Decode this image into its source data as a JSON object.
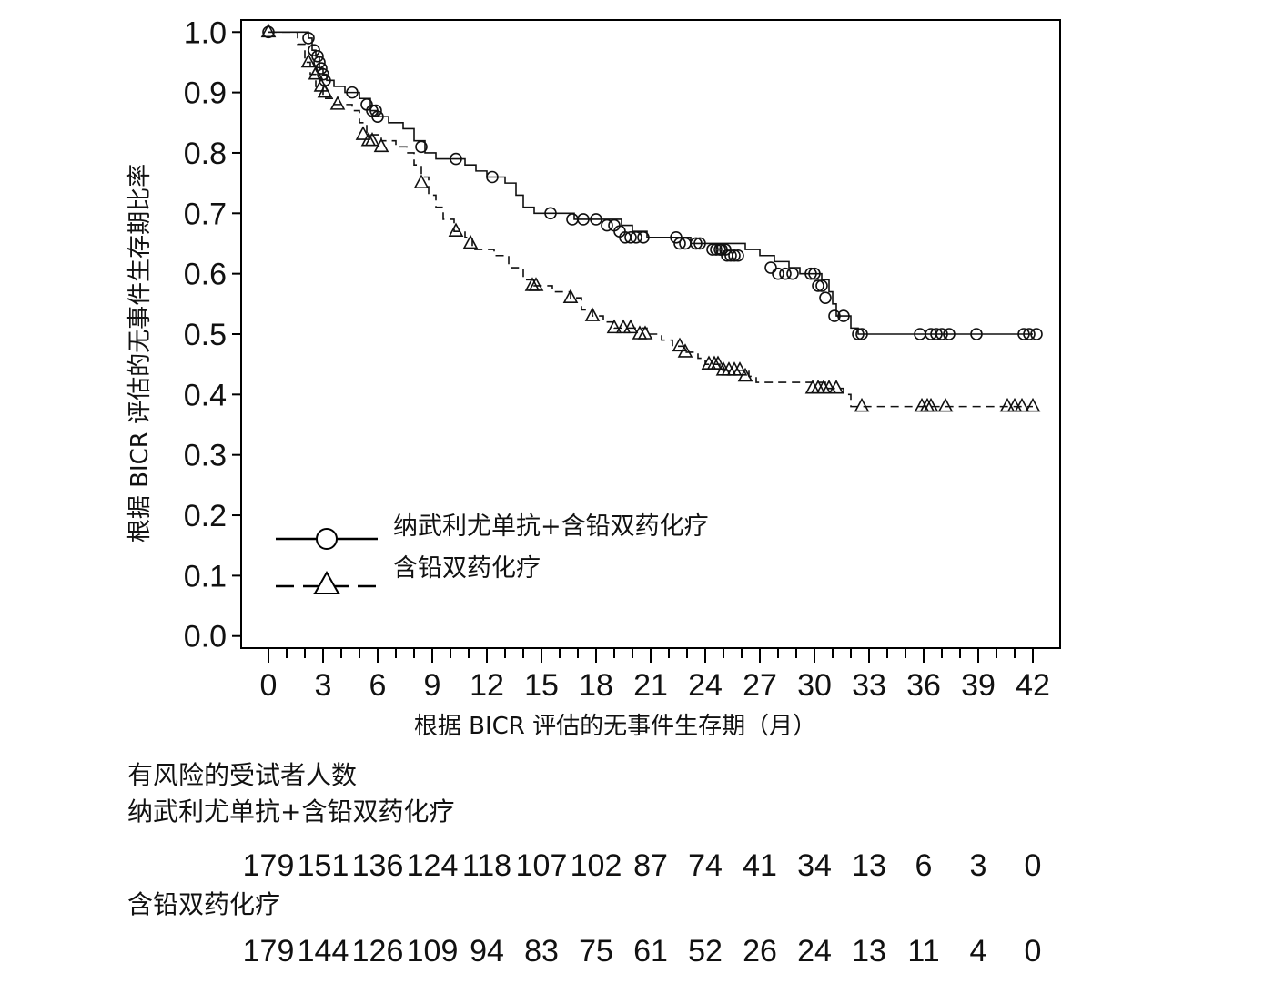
{
  "chart_data": {
    "type": "line",
    "xlabel": "根据 BICR 评估的无事件生存期（月）",
    "ylabel": "根据 BICR 评估的无事件生存期比率",
    "xlim": [
      -1.5,
      43.5
    ],
    "ylim": [
      -0.02,
      1.02
    ],
    "xticks": [
      0,
      3,
      6,
      9,
      12,
      15,
      18,
      21,
      24,
      27,
      30,
      33,
      36,
      39,
      42
    ],
    "yticks": [
      0.0,
      0.1,
      0.2,
      0.3,
      0.4,
      0.5,
      0.6,
      0.7,
      0.8,
      0.9,
      1.0
    ],
    "x_minor_step": 1,
    "grid": false,
    "legend_position": "bottom-left",
    "series": [
      {
        "name": "纳武利尤单抗+含铅双药化疗",
        "line_style": "solid",
        "marker": "circle",
        "steps": [
          [
            0,
            1.0
          ],
          [
            2.2,
            0.99
          ],
          [
            2.4,
            0.97
          ],
          [
            2.6,
            0.96
          ],
          [
            2.8,
            0.94
          ],
          [
            3.0,
            0.93
          ],
          [
            3.2,
            0.92
          ],
          [
            3.6,
            0.91
          ],
          [
            4.2,
            0.9
          ],
          [
            5.0,
            0.89
          ],
          [
            5.6,
            0.87
          ],
          [
            6.0,
            0.86
          ],
          [
            6.6,
            0.85
          ],
          [
            7.4,
            0.84
          ],
          [
            8.0,
            0.82
          ],
          [
            8.6,
            0.8
          ],
          [
            9.2,
            0.79
          ],
          [
            10.8,
            0.78
          ],
          [
            11.4,
            0.77
          ],
          [
            12.0,
            0.76
          ],
          [
            13.0,
            0.75
          ],
          [
            13.6,
            0.73
          ],
          [
            14.0,
            0.71
          ],
          [
            14.6,
            0.7
          ],
          [
            16.8,
            0.69
          ],
          [
            17.6,
            0.69
          ],
          [
            19.4,
            0.68
          ],
          [
            20.0,
            0.67
          ],
          [
            20.8,
            0.66
          ],
          [
            22.8,
            0.66
          ],
          [
            23.2,
            0.65
          ],
          [
            26.2,
            0.64
          ],
          [
            27.0,
            0.63
          ],
          [
            27.8,
            0.62
          ],
          [
            28.6,
            0.61
          ],
          [
            29.2,
            0.6
          ],
          [
            30.4,
            0.59
          ],
          [
            30.8,
            0.57
          ],
          [
            31.0,
            0.55
          ],
          [
            31.2,
            0.53
          ],
          [
            32.0,
            0.51
          ],
          [
            32.4,
            0.5
          ]
        ],
        "end_x": 42.0,
        "censored": [
          [
            0,
            1.0
          ],
          [
            2.2,
            0.99
          ],
          [
            2.5,
            0.97
          ],
          [
            2.7,
            0.96
          ],
          [
            2.8,
            0.95
          ],
          [
            2.9,
            0.94
          ],
          [
            3.0,
            0.93
          ],
          [
            3.1,
            0.92
          ],
          [
            4.6,
            0.9
          ],
          [
            5.4,
            0.88
          ],
          [
            5.7,
            0.87
          ],
          [
            5.9,
            0.87
          ],
          [
            6.0,
            0.86
          ],
          [
            8.4,
            0.81
          ],
          [
            10.3,
            0.79
          ],
          [
            12.3,
            0.76
          ],
          [
            15.5,
            0.7
          ],
          [
            16.7,
            0.69
          ],
          [
            17.3,
            0.69
          ],
          [
            18.0,
            0.69
          ],
          [
            18.6,
            0.68
          ],
          [
            19.0,
            0.68
          ],
          [
            19.3,
            0.67
          ],
          [
            19.6,
            0.66
          ],
          [
            19.9,
            0.66
          ],
          [
            20.2,
            0.66
          ],
          [
            20.6,
            0.66
          ],
          [
            22.4,
            0.66
          ],
          [
            22.6,
            0.65
          ],
          [
            22.9,
            0.65
          ],
          [
            23.5,
            0.65
          ],
          [
            23.7,
            0.65
          ],
          [
            24.4,
            0.64
          ],
          [
            24.6,
            0.64
          ],
          [
            24.8,
            0.64
          ],
          [
            24.9,
            0.64
          ],
          [
            25.1,
            0.64
          ],
          [
            25.2,
            0.63
          ],
          [
            25.4,
            0.63
          ],
          [
            25.6,
            0.63
          ],
          [
            25.8,
            0.63
          ],
          [
            27.6,
            0.61
          ],
          [
            28.0,
            0.6
          ],
          [
            28.4,
            0.6
          ],
          [
            28.8,
            0.6
          ],
          [
            29.8,
            0.6
          ],
          [
            30.0,
            0.6
          ],
          [
            30.2,
            0.58
          ],
          [
            30.4,
            0.58
          ],
          [
            30.6,
            0.56
          ],
          [
            31.1,
            0.53
          ],
          [
            31.6,
            0.53
          ],
          [
            32.4,
            0.5
          ],
          [
            32.6,
            0.5
          ],
          [
            35.8,
            0.5
          ],
          [
            36.4,
            0.5
          ],
          [
            36.7,
            0.5
          ],
          [
            37.0,
            0.5
          ],
          [
            37.4,
            0.5
          ],
          [
            38.9,
            0.5
          ],
          [
            41.5,
            0.5
          ],
          [
            41.8,
            0.5
          ],
          [
            42.2,
            0.5
          ]
        ]
      },
      {
        "name": "含铅双药化疗",
        "line_style": "dashed",
        "marker": "triangle",
        "steps": [
          [
            0,
            1.0
          ],
          [
            1.6,
            0.98
          ],
          [
            2.0,
            0.95
          ],
          [
            2.3,
            0.93
          ],
          [
            2.6,
            0.91
          ],
          [
            3.0,
            0.89
          ],
          [
            3.6,
            0.88
          ],
          [
            4.6,
            0.87
          ],
          [
            5.0,
            0.85
          ],
          [
            5.4,
            0.83
          ],
          [
            6.2,
            0.82
          ],
          [
            7.0,
            0.81
          ],
          [
            7.6,
            0.8
          ],
          [
            8.0,
            0.78
          ],
          [
            8.4,
            0.76
          ],
          [
            8.8,
            0.73
          ],
          [
            9.2,
            0.71
          ],
          [
            9.6,
            0.69
          ],
          [
            10.2,
            0.67
          ],
          [
            10.8,
            0.66
          ],
          [
            11.2,
            0.64
          ],
          [
            12.4,
            0.63
          ],
          [
            13.2,
            0.61
          ],
          [
            14.0,
            0.59
          ],
          [
            14.6,
            0.58
          ],
          [
            15.6,
            0.57
          ],
          [
            16.6,
            0.56
          ],
          [
            17.2,
            0.54
          ],
          [
            17.8,
            0.53
          ],
          [
            18.4,
            0.52
          ],
          [
            19.0,
            0.51
          ],
          [
            20.8,
            0.5
          ],
          [
            21.6,
            0.49
          ],
          [
            22.2,
            0.48
          ],
          [
            22.8,
            0.47
          ],
          [
            23.6,
            0.46
          ],
          [
            24.0,
            0.45
          ],
          [
            24.8,
            0.44
          ],
          [
            26.4,
            0.43
          ],
          [
            26.8,
            0.42
          ],
          [
            30.6,
            0.41
          ],
          [
            31.6,
            0.4
          ],
          [
            32.0,
            0.38
          ]
        ],
        "end_x": 42.0,
        "censored": [
          [
            0,
            1.0
          ],
          [
            2.2,
            0.95
          ],
          [
            2.6,
            0.93
          ],
          [
            2.9,
            0.91
          ],
          [
            3.1,
            0.9
          ],
          [
            3.8,
            0.88
          ],
          [
            5.2,
            0.83
          ],
          [
            5.5,
            0.82
          ],
          [
            5.7,
            0.82
          ],
          [
            6.2,
            0.81
          ],
          [
            8.4,
            0.75
          ],
          [
            10.3,
            0.67
          ],
          [
            11.1,
            0.65
          ],
          [
            14.5,
            0.58
          ],
          [
            14.7,
            0.58
          ],
          [
            16.6,
            0.56
          ],
          [
            17.8,
            0.53
          ],
          [
            19.0,
            0.51
          ],
          [
            19.5,
            0.51
          ],
          [
            19.9,
            0.51
          ],
          [
            20.4,
            0.5
          ],
          [
            20.7,
            0.5
          ],
          [
            22.6,
            0.48
          ],
          [
            22.9,
            0.47
          ],
          [
            24.2,
            0.45
          ],
          [
            24.5,
            0.45
          ],
          [
            24.7,
            0.45
          ],
          [
            25.0,
            0.44
          ],
          [
            25.3,
            0.44
          ],
          [
            25.6,
            0.44
          ],
          [
            25.9,
            0.44
          ],
          [
            26.2,
            0.43
          ],
          [
            29.9,
            0.41
          ],
          [
            30.2,
            0.41
          ],
          [
            30.5,
            0.41
          ],
          [
            30.8,
            0.41
          ],
          [
            31.2,
            0.41
          ],
          [
            32.6,
            0.38
          ],
          [
            35.9,
            0.38
          ],
          [
            36.2,
            0.38
          ],
          [
            36.4,
            0.38
          ],
          [
            37.2,
            0.38
          ],
          [
            40.6,
            0.38
          ],
          [
            41.0,
            0.38
          ],
          [
            41.4,
            0.38
          ],
          [
            42.0,
            0.38
          ]
        ]
      }
    ]
  },
  "risk_table": {
    "title": "有风险的受试者人数",
    "rows": [
      {
        "label": "纳武利尤单抗+含铅双药化疗",
        "values": [
          "179",
          "151",
          "136",
          "124",
          "118",
          "107",
          "102",
          "87",
          "74",
          "41",
          "34",
          "13",
          "6",
          "3",
          "0"
        ]
      },
      {
        "label": "含铅双药化疗",
        "values": [
          "179",
          "144",
          "126",
          "109",
          "94",
          "83",
          "75",
          "61",
          "52",
          "26",
          "24",
          "13",
          "11",
          "4",
          "0"
        ]
      }
    ]
  }
}
